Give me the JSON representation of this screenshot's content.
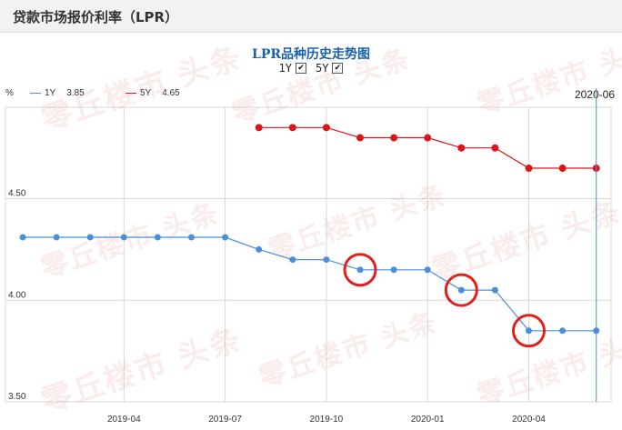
{
  "header": {
    "title": "贷款市场报价利率（LPR）"
  },
  "chart_title": "LPR品种历史走势图",
  "toggles": [
    {
      "label": "1Y",
      "checked": true
    },
    {
      "label": "5Y",
      "checked": true
    }
  ],
  "check_glyph": "✔",
  "unit": "%",
  "cursor_date": "2020-06",
  "legend": [
    {
      "name": "1Y",
      "value": "3.85",
      "color": "#4a8fd8"
    },
    {
      "name": "5Y",
      "value": "4.65",
      "color": "#d9161c"
    }
  ],
  "watermark": "零丘楼市 头条",
  "highlight_color": "#e0201b",
  "chart_data": {
    "type": "line",
    "ylim": [
      3.5,
      4.95
    ],
    "yticks": [
      "3.50",
      "4.00",
      "4.50"
    ],
    "xticks": [
      "2019-04",
      "2019-07",
      "2019-10",
      "2020-01",
      "2020-04"
    ],
    "x": [
      "2019-01",
      "2019-02",
      "2019-03",
      "2019-04",
      "2019-05",
      "2019-06",
      "2019-07",
      "2019-08",
      "2019-09",
      "2019-10",
      "2019-11",
      "2019-12",
      "2020-01",
      "2020-02",
      "2020-03",
      "2020-04",
      "2020-05",
      "2020-06"
    ],
    "series": [
      {
        "name": "1Y",
        "color": "#4a8fd8",
        "values": [
          4.31,
          4.31,
          4.31,
          4.31,
          4.31,
          4.31,
          4.31,
          4.25,
          4.2,
          4.2,
          4.15,
          4.15,
          4.15,
          4.05,
          4.05,
          3.85,
          3.85,
          3.85
        ]
      },
      {
        "name": "5Y",
        "color": "#d9161c",
        "values": [
          null,
          null,
          null,
          null,
          null,
          null,
          null,
          4.85,
          4.85,
          4.85,
          4.8,
          4.8,
          4.8,
          4.75,
          4.75,
          4.65,
          4.65,
          4.65
        ]
      }
    ],
    "highlighted": [
      {
        "series": "1Y",
        "x": "2019-11"
      },
      {
        "series": "1Y",
        "x": "2020-02"
      },
      {
        "series": "1Y",
        "x": "2020-04"
      }
    ],
    "cursor": "2020-06",
    "grid": true
  }
}
